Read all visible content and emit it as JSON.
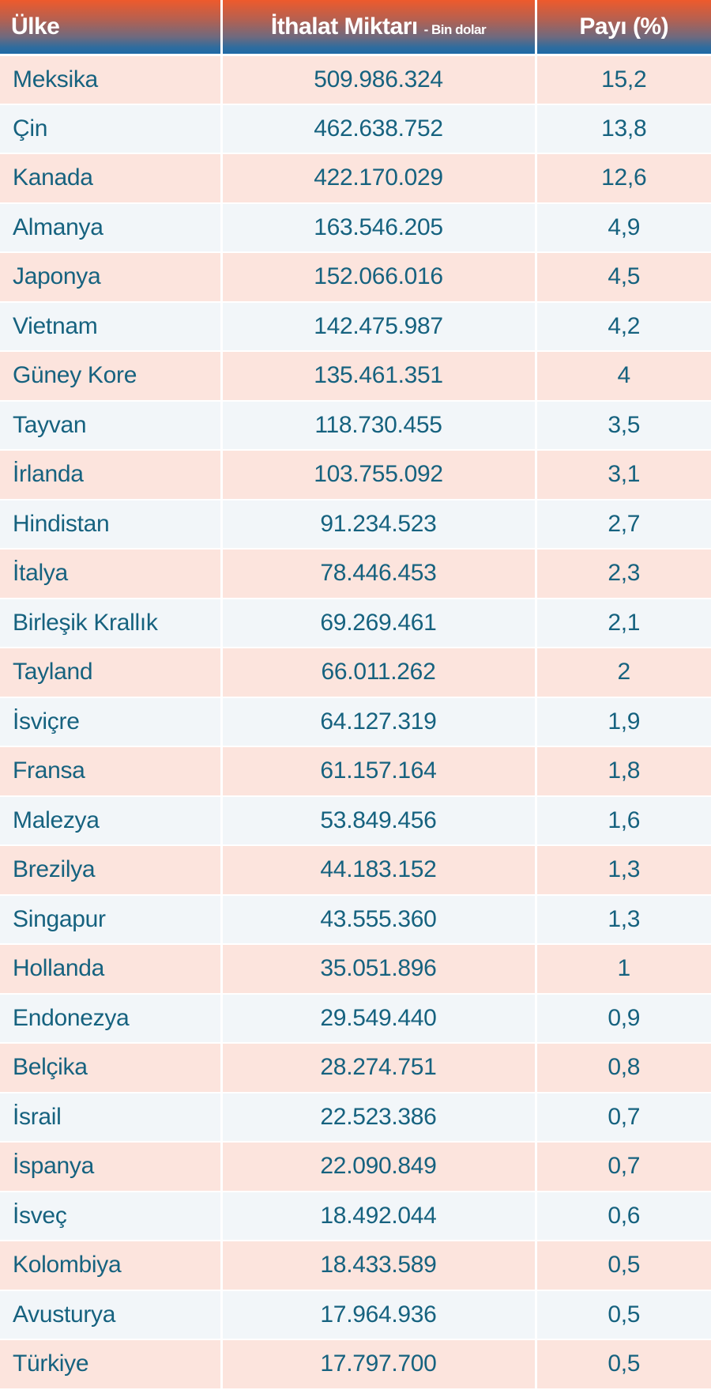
{
  "header": {
    "country": "Ülke",
    "amount": "İthalat Miktarı",
    "amount_unit": "- Bin dolar",
    "share": "Payı (%)"
  },
  "colors": {
    "header_top": "#ee5a2c",
    "header_bottom": "#1f6aa5",
    "row_odd": "#fce4dd",
    "row_even": "#f2f6f9",
    "text": "#16627f"
  },
  "rows": [
    {
      "country": "Meksika",
      "amount": "509.986.324",
      "share": "15,2"
    },
    {
      "country": "Çin",
      "amount": "462.638.752",
      "share": "13,8"
    },
    {
      "country": "Kanada",
      "amount": "422.170.029",
      "share": "12,6"
    },
    {
      "country": "Almanya",
      "amount": "163.546.205",
      "share": "4,9"
    },
    {
      "country": "Japonya",
      "amount": "152.066.016",
      "share": "4,5"
    },
    {
      "country": "Vietnam",
      "amount": "142.475.987",
      "share": "4,2"
    },
    {
      "country": "Güney Kore",
      "amount": "135.461.351",
      "share": "4"
    },
    {
      "country": "Tayvan",
      "amount": "118.730.455",
      "share": "3,5"
    },
    {
      "country": "İrlanda",
      "amount": "103.755.092",
      "share": "3,1"
    },
    {
      "country": "Hindistan",
      "amount": "91.234.523",
      "share": "2,7"
    },
    {
      "country": "İtalya",
      "amount": "78.446.453",
      "share": "2,3"
    },
    {
      "country": "Birleşik Krallık",
      "amount": "69.269.461",
      "share": "2,1"
    },
    {
      "country": "Tayland",
      "amount": "66.011.262",
      "share": "2"
    },
    {
      "country": "İsviçre",
      "amount": "64.127.319",
      "share": "1,9"
    },
    {
      "country": "Fransa",
      "amount": "61.157.164",
      "share": "1,8"
    },
    {
      "country": "Malezya",
      "amount": "53.849.456",
      "share": "1,6"
    },
    {
      "country": "Brezilya",
      "amount": "44.183.152",
      "share": "1,3"
    },
    {
      "country": "Singapur",
      "amount": "43.555.360",
      "share": "1,3"
    },
    {
      "country": "Hollanda",
      "amount": "35.051.896",
      "share": "1"
    },
    {
      "country": "Endonezya",
      "amount": "29.549.440",
      "share": "0,9"
    },
    {
      "country": "Belçika",
      "amount": "28.274.751",
      "share": "0,8"
    },
    {
      "country": "İsrail",
      "amount": "22.523.386",
      "share": "0,7"
    },
    {
      "country": "İspanya",
      "amount": "22.090.849",
      "share": "0,7"
    },
    {
      "country": "İsveç",
      "amount": "18.492.044",
      "share": "0,6"
    },
    {
      "country": "Kolombiya",
      "amount": "18.433.589",
      "share": "0,5"
    },
    {
      "country": "Avusturya",
      "amount": "17.964.936",
      "share": "0,5"
    },
    {
      "country": "Türkiye",
      "amount": "17.797.700",
      "share": "0,5"
    }
  ]
}
